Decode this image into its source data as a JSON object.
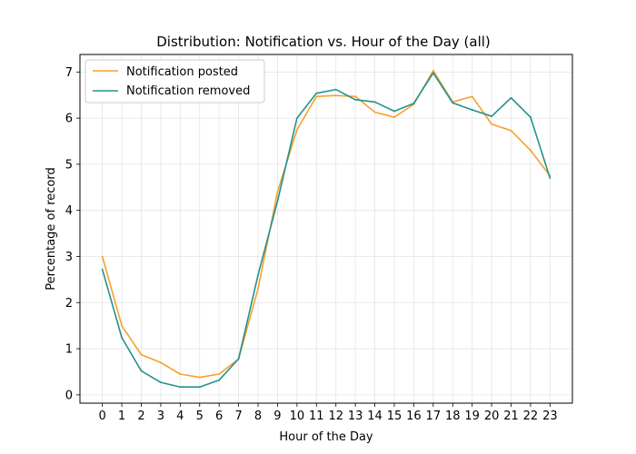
{
  "chart_data": {
    "type": "line",
    "title": "Distribution: Notification vs. Hour of the Day (all)",
    "xlabel": "Hour of the Day",
    "ylabel": "Percentage of record",
    "x": [
      0,
      1,
      2,
      3,
      4,
      5,
      6,
      7,
      8,
      9,
      10,
      11,
      12,
      13,
      14,
      15,
      16,
      17,
      18,
      19,
      20,
      21,
      22,
      23
    ],
    "x_tick_labels": [
      "0",
      "1",
      "2",
      "3",
      "4",
      "5",
      "6",
      "7",
      "8",
      "9",
      "10",
      "11",
      "12",
      "13",
      "14",
      "15",
      "16",
      "17",
      "18",
      "19",
      "20",
      "21",
      "22",
      "23"
    ],
    "y_ticks": [
      0,
      1,
      2,
      3,
      4,
      5,
      6,
      7
    ],
    "y_tick_labels": [
      "0",
      "1",
      "2",
      "3",
      "4",
      "5",
      "6",
      "7"
    ],
    "xlim": [
      -1.15,
      24.15
    ],
    "ylim": [
      -0.18,
      7.38
    ],
    "grid": true,
    "legend_position": "upper-left",
    "series": [
      {
        "name": "Notification posted",
        "color": "#f5a12d",
        "values": [
          3.0,
          1.5,
          0.87,
          0.7,
          0.45,
          0.38,
          0.45,
          0.78,
          2.3,
          4.4,
          5.75,
          6.47,
          6.49,
          6.47,
          6.13,
          6.02,
          6.3,
          7.03,
          6.35,
          6.47,
          5.87,
          5.73,
          5.3,
          4.75
        ]
      },
      {
        "name": "Notification removed",
        "color": "#23928e",
        "values": [
          2.72,
          1.24,
          0.52,
          0.27,
          0.17,
          0.17,
          0.32,
          0.78,
          2.6,
          4.2,
          6.0,
          6.54,
          6.62,
          6.4,
          6.35,
          6.15,
          6.32,
          6.98,
          6.33,
          6.18,
          6.04,
          6.44,
          6.02,
          4.7
        ]
      }
    ]
  }
}
